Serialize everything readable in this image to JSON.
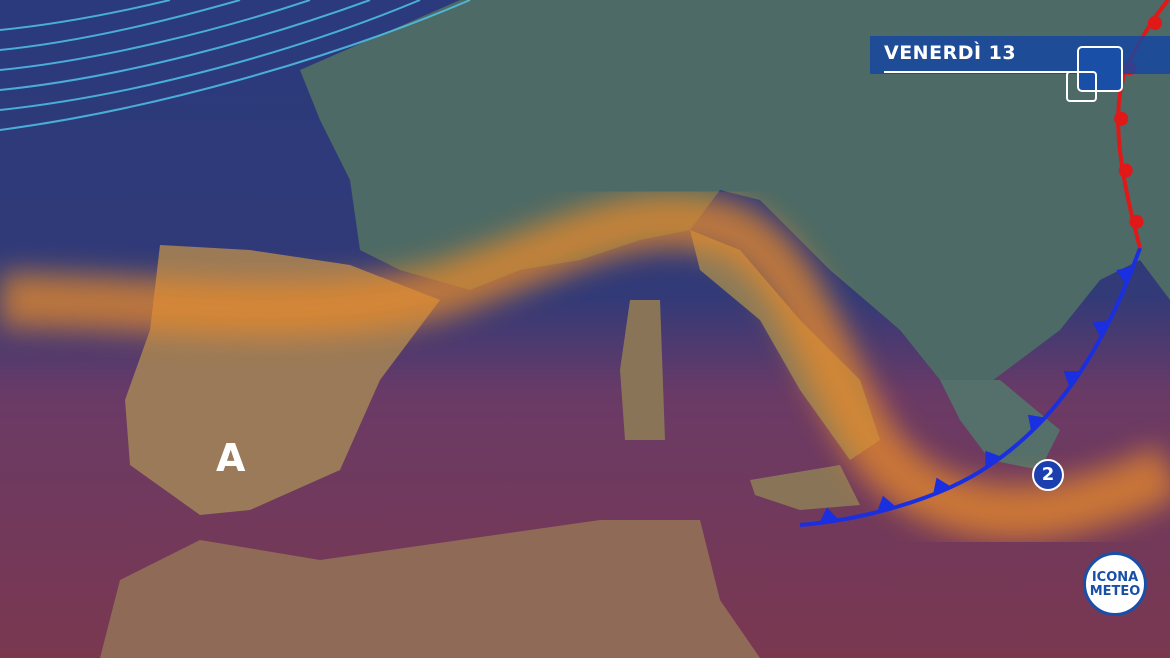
{
  "header": {
    "title": "VENERDÌ 13"
  },
  "pressure_systems": [
    {
      "type": "high",
      "label": "A"
    },
    {
      "type": "low",
      "label": "2"
    }
  ],
  "fronts": [
    {
      "type": "cold",
      "color": "#1a2fe0"
    },
    {
      "type": "warm",
      "color": "#e01818"
    }
  ],
  "colors": {
    "sea": "#2b3d7e",
    "warm_air": "#7a3a5a",
    "heat_band": "#e88a2c",
    "isobars": "#4fc3e8"
  },
  "logo": {
    "line1": "ICONA",
    "line2": "METEO"
  }
}
